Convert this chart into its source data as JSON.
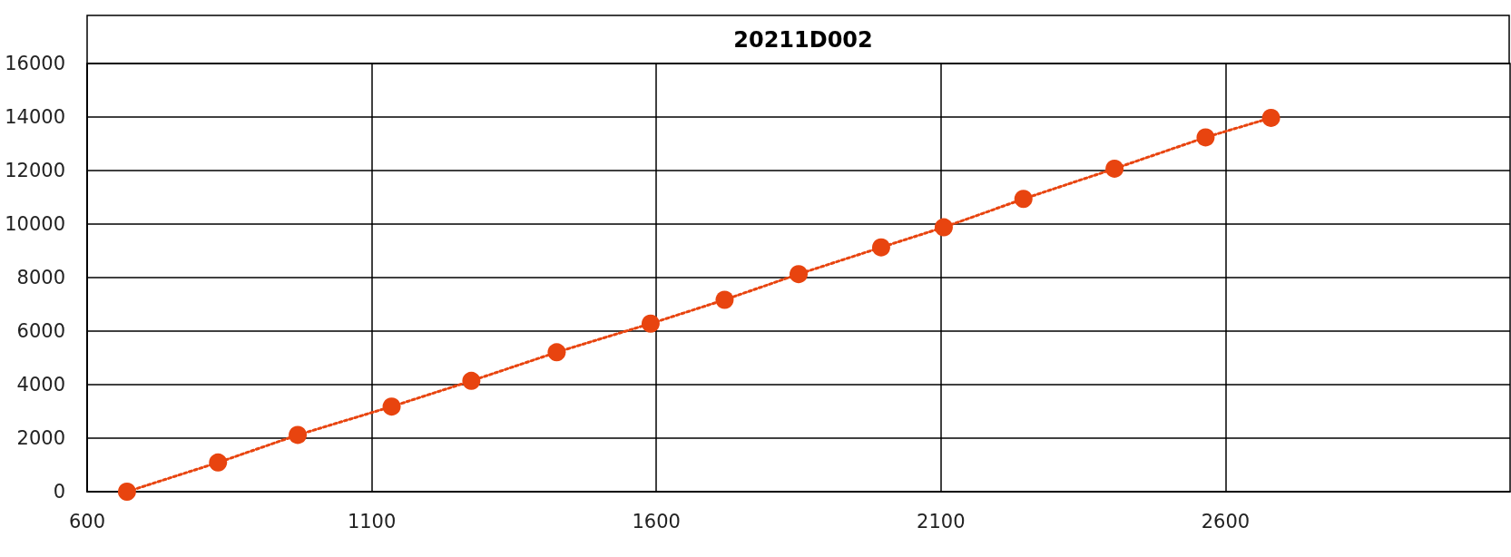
{
  "chart_data": {
    "type": "line",
    "title": "20211D002",
    "x": [
      670,
      830,
      970,
      1135,
      1275,
      1425,
      1590,
      1720,
      1850,
      1995,
      2105,
      2245,
      2405,
      2565,
      2680
    ],
    "series": [
      {
        "color": "#e8440f",
        "values": [
          0,
          1090,
          2120,
          3180,
          4140,
          5210,
          6280,
          7170,
          8130,
          9130,
          9880,
          10940,
          12070,
          13240,
          13970
        ]
      }
    ],
    "xlim": [
      600,
      3100
    ],
    "xticks": [
      600,
      1100,
      1600,
      2100,
      2600
    ],
    "ylim": [
      0,
      16000
    ],
    "yticks": [
      0,
      2000,
      4000,
      6000,
      8000,
      10000,
      12000,
      14000,
      16000
    ],
    "grid": true,
    "marker": "circle",
    "line_style": "dotted"
  }
}
